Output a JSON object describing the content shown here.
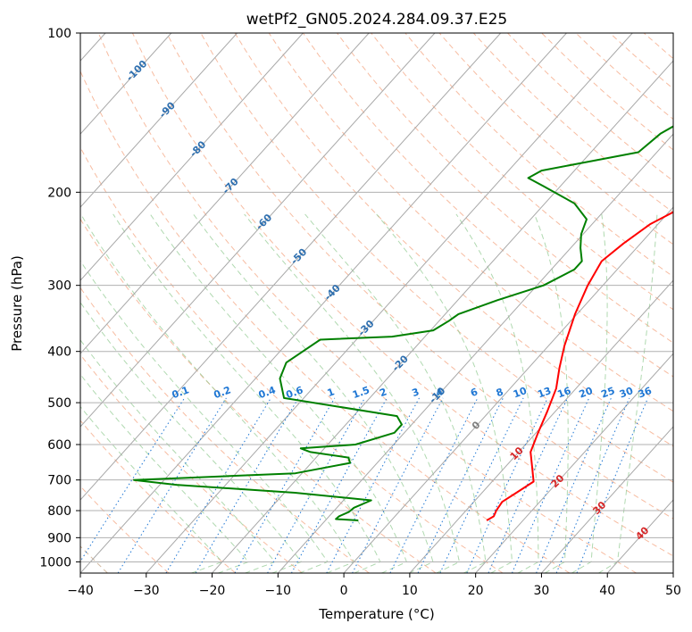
{
  "chart_data": {
    "type": "line",
    "title": "wetPf2_GN05.2024.284.09.37.E25",
    "xlabel": "Temperature (°C)",
    "ylabel": "Pressure (hPa)",
    "xlim": [
      -40,
      50
    ],
    "ylim": [
      1050,
      100
    ],
    "y_scale": "log",
    "grid": true,
    "x_ticks": [
      -40,
      -30,
      -20,
      -10,
      0,
      10,
      20,
      30,
      40,
      50
    ],
    "y_ticks": [
      100,
      200,
      300,
      400,
      500,
      600,
      700,
      800,
      900,
      1000
    ],
    "series": [
      {
        "color": "#ff0000",
        "points": [
          [
            14.5,
            835
          ],
          [
            15.0,
            820
          ],
          [
            14.6,
            800
          ],
          [
            14.3,
            770
          ],
          [
            15.2,
            740
          ],
          [
            16.3,
            705
          ],
          [
            14.0,
            660
          ],
          [
            11.8,
            620
          ],
          [
            10.3,
            570
          ],
          [
            8.8,
            520
          ],
          [
            7.0,
            470
          ],
          [
            4.7,
            430
          ],
          [
            2.4,
            390
          ],
          [
            -0.3,
            340
          ],
          [
            -2.3,
            300
          ],
          [
            -3.5,
            270
          ],
          [
            -2.6,
            250
          ],
          [
            -1.2,
            230
          ],
          [
            2.0,
            210
          ],
          [
            7.0,
            190
          ],
          [
            10.5,
            170
          ],
          [
            10.2,
            160
          ],
          [
            8.5,
            150
          ],
          [
            5.5,
            140
          ],
          [
            1.6,
            128
          ],
          [
            -1.5,
            118
          ],
          [
            -3.0,
            110
          ],
          [
            -4.0,
            100
          ]
        ]
      },
      {
        "color": "#008000",
        "points": [
          [
            -5.0,
            835
          ],
          [
            -8.6,
            830
          ],
          [
            -8.5,
            820
          ],
          [
            -7.6,
            805
          ],
          [
            -7.4,
            790
          ],
          [
            -5.8,
            765
          ],
          [
            -18.4,
            740
          ],
          [
            -37.5,
            715
          ],
          [
            -44.6,
            700
          ],
          [
            -21.0,
            680
          ],
          [
            -14.1,
            650
          ],
          [
            -15.1,
            635
          ],
          [
            -21.6,
            620
          ],
          [
            -23.6,
            610
          ],
          [
            -15.8,
            600
          ],
          [
            -11.5,
            570
          ],
          [
            -11.5,
            550
          ],
          [
            -13.4,
            530
          ],
          [
            -33.0,
            490
          ],
          [
            -36.3,
            450
          ],
          [
            -37.5,
            420
          ],
          [
            -35.5,
            380
          ],
          [
            -25.0,
            375
          ],
          [
            -19.6,
            365
          ],
          [
            -18.5,
            350
          ],
          [
            -18.0,
            340
          ],
          [
            -14.0,
            320
          ],
          [
            -9.0,
            300
          ],
          [
            -6.5,
            280
          ],
          [
            -6.5,
            270
          ],
          [
            -8.5,
            255
          ],
          [
            -10.3,
            240
          ],
          [
            -11.5,
            225
          ],
          [
            -15.5,
            210
          ],
          [
            -22.5,
            195
          ],
          [
            -26.0,
            188
          ],
          [
            -25.0,
            182
          ],
          [
            -19.0,
            175
          ],
          [
            -12.8,
            168
          ],
          [
            -12.0,
            155
          ],
          [
            -9.0,
            140
          ],
          [
            -5.5,
            127
          ],
          [
            -2.8,
            118
          ],
          [
            -0.5,
            110
          ],
          [
            1.0,
            100
          ]
        ]
      }
    ],
    "isotherm_labels": [
      "-100",
      "-90",
      "-80",
      "-70",
      "-60",
      "-50",
      "-40",
      "-30",
      "-20",
      "-10",
      "0",
      "10",
      "20",
      "30",
      "40"
    ],
    "isotherm_label_colors": {
      "cold": "#2f70b0",
      "zero": "#7f7f7f",
      "warm": "#d62728"
    },
    "mixing_ratio_labels": [
      "0.1",
      "0.2",
      "0.4",
      "0.6",
      "1",
      "1.5",
      "2",
      "3",
      "4",
      "6",
      "8",
      "10",
      "13",
      "16",
      "20",
      "25",
      "30",
      "36"
    ],
    "mixing_ratio_values": [
      0.1,
      0.2,
      0.4,
      0.6,
      1,
      1.5,
      2,
      3,
      4,
      6,
      8,
      10,
      13,
      16,
      20,
      25,
      30,
      36
    ],
    "colors": {
      "isotherm": "#a8a8a8",
      "isobar": "#b0b0b0",
      "dry_adiabat": "#f4a582",
      "moist_adiabat": "#8fc98f",
      "mixing_ratio": "#1f77d4",
      "extra_curve": "#c9a98a"
    }
  }
}
